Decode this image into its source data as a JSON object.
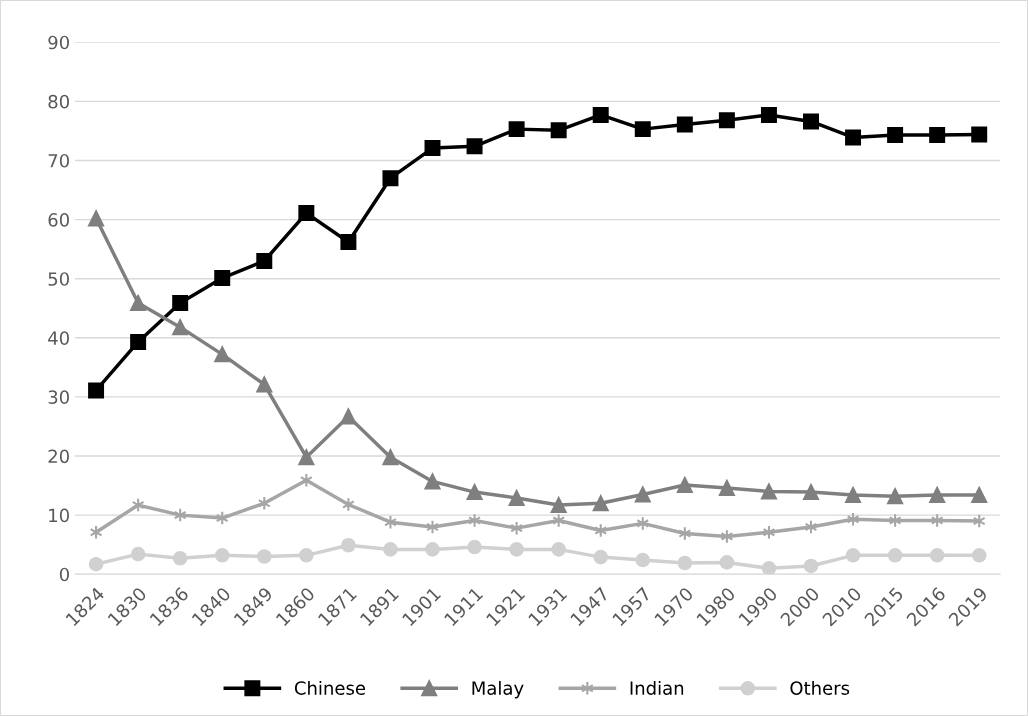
{
  "chart_data": {
    "type": "line",
    "categories": [
      "1824",
      "1830",
      "1836",
      "1840",
      "1849",
      "1860",
      "1871",
      "1891",
      "1901",
      "1911",
      "1921",
      "1931",
      "1947",
      "1957",
      "1970",
      "1980",
      "1990",
      "2000",
      "2010",
      "2015",
      "2016",
      "2019"
    ],
    "series": [
      {
        "name": "Chinese",
        "color": "#000000",
        "marker": "square",
        "values": [
          31.1,
          39.3,
          45.9,
          50.1,
          53,
          61.1,
          56.2,
          67,
          72.1,
          72.4,
          75.3,
          75.1,
          77.7,
          75.3,
          76.1,
          76.8,
          77.7,
          76.6,
          73.9,
          74.3,
          74.3,
          74.4
        ]
      },
      {
        "name": "Malay",
        "color": "#7f7f7f",
        "marker": "triangle",
        "values": [
          60.2,
          45.9,
          41.8,
          37.2,
          32.1,
          19.8,
          26.7,
          19.8,
          15.7,
          13.9,
          12.9,
          11.7,
          12,
          13.5,
          15.1,
          14.6,
          14,
          13.9,
          13.4,
          13.2,
          13.4,
          13.4
        ]
      },
      {
        "name": "Indian",
        "color": "#a6a6a6",
        "marker": "cross",
        "values": [
          7.1,
          11.7,
          10,
          9.5,
          12,
          15.9,
          11.8,
          8.8,
          8,
          9.1,
          7.8,
          9.1,
          7.4,
          8.6,
          6.9,
          6.4,
          7.1,
          8,
          9.3,
          9.1,
          9.1,
          9
        ]
      },
      {
        "name": "Others",
        "color": "#d0d0d0",
        "marker": "circle",
        "values": [
          1.7,
          3.4,
          2.7,
          3.2,
          3,
          3.2,
          4.9,
          4.2,
          4.2,
          4.6,
          4.2,
          4.2,
          2.9,
          2.4,
          1.9,
          2,
          1,
          1.4,
          3.2,
          3.2,
          3.2,
          3.2
        ]
      }
    ],
    "ylim": [
      0,
      90
    ],
    "yticks": [
      0,
      10,
      20,
      30,
      40,
      50,
      60,
      70,
      80,
      90
    ],
    "grid": "y",
    "legend": "bottom",
    "line_style": "solid"
  }
}
